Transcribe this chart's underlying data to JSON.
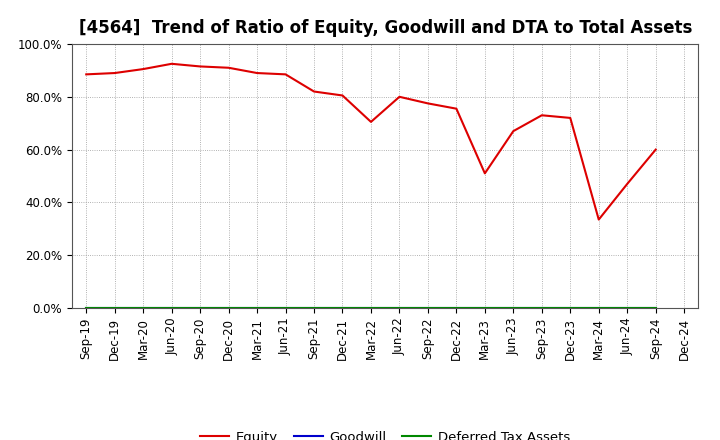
{
  "title": "[4564]  Trend of Ratio of Equity, Goodwill and DTA to Total Assets",
  "x_labels": [
    "Sep-19",
    "Dec-19",
    "Mar-20",
    "Jun-20",
    "Sep-20",
    "Dec-20",
    "Mar-21",
    "Jun-21",
    "Sep-21",
    "Dec-21",
    "Mar-22",
    "Jun-22",
    "Sep-22",
    "Dec-22",
    "Mar-23",
    "Jun-23",
    "Sep-23",
    "Dec-23",
    "Mar-24",
    "Jun-24",
    "Sep-24",
    "Dec-24"
  ],
  "equity": [
    88.5,
    89.0,
    90.5,
    92.5,
    91.5,
    91.0,
    89.0,
    88.5,
    82.0,
    80.5,
    70.5,
    80.0,
    77.5,
    75.5,
    51.0,
    67.0,
    73.0,
    72.0,
    33.5,
    47.0,
    60.0,
    null
  ],
  "goodwill": [
    0.0,
    0.0,
    0.0,
    0.0,
    0.0,
    0.0,
    0.0,
    0.0,
    0.0,
    0.0,
    0.0,
    0.0,
    0.0,
    0.0,
    0.0,
    0.0,
    0.0,
    0.0,
    0.0,
    0.0,
    0.0,
    null
  ],
  "deferred_tax_assets": [
    0.0,
    0.0,
    0.0,
    0.0,
    0.0,
    0.0,
    0.0,
    0.0,
    0.0,
    0.0,
    0.0,
    0.0,
    0.0,
    0.0,
    0.0,
    0.0,
    0.0,
    0.0,
    0.0,
    0.0,
    0.0,
    null
  ],
  "equity_color": "#dd0000",
  "goodwill_color": "#0000cc",
  "dta_color": "#008800",
  "ylim": [
    0,
    100
  ],
  "yticks": [
    0,
    20,
    40,
    60,
    80,
    100
  ],
  "ytick_labels": [
    "0.0%",
    "20.0%",
    "40.0%",
    "60.0%",
    "80.0%",
    "100.0%"
  ],
  "background_color": "#ffffff",
  "plot_bg_color": "#ffffff",
  "grid_color": "#999999",
  "legend_items": [
    "Equity",
    "Goodwill",
    "Deferred Tax Assets"
  ],
  "title_fontsize": 12,
  "axis_fontsize": 8.5,
  "legend_fontsize": 9.5
}
